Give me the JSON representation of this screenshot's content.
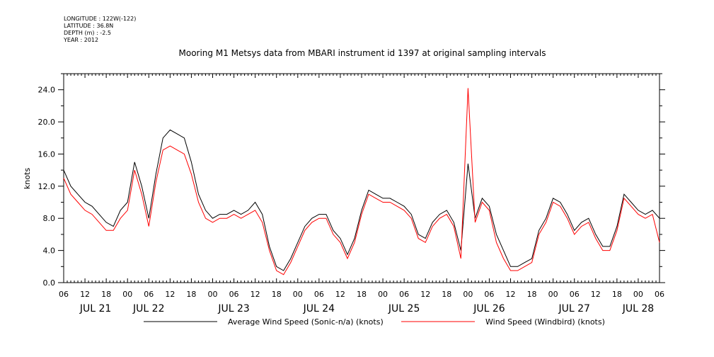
{
  "header": {
    "meta_lines": [
      "LONGITUDE : 122W(-122)",
      "LATITUDE : 36.8N",
      "DEPTH (m) : -2.5",
      "YEAR : 2012"
    ],
    "title": "Mooring M1 Metsys data from MBARI instrument id 1397 at original sampling intervals"
  },
  "chart_data": {
    "type": "line",
    "title": "Mooring M1 Metsys data from MBARI instrument id 1397 at original sampling intervals",
    "xlabel": "",
    "ylabel": "knots",
    "x_units": "hours since JUL 21 06:00 (2012)",
    "xlim": [
      0,
      168
    ],
    "ylim": [
      0,
      26
    ],
    "y_ticks": [
      0.0,
      4.0,
      8.0,
      12.0,
      16.0,
      20.0,
      24.0
    ],
    "y_tick_labels": [
      "0.0",
      "4.0",
      "8.0",
      "12.0",
      "16.0",
      "20.0",
      "24.0"
    ],
    "x_tick_labels": [
      "06",
      "12",
      "18",
      "00",
      "06",
      "12",
      "18",
      "00",
      "06",
      "12",
      "18",
      "00",
      "06",
      "12",
      "18",
      "00",
      "06",
      "12",
      "18",
      "00",
      "06",
      "12",
      "18",
      "00",
      "06",
      "12",
      "18",
      "00",
      "06"
    ],
    "day_labels": [
      "JUL 21",
      "JUL 22",
      "JUL 23",
      "JUL 24",
      "JUL 25",
      "JUL 26",
      "JUL 27",
      "JUL 28"
    ],
    "legend_position": "bottom",
    "grid": false,
    "series": [
      {
        "name": "Average Wind Speed (Sonic-n/a) (knots)",
        "color": "#000000",
        "x": [
          0,
          2,
          4,
          6,
          8,
          10,
          12,
          14,
          16,
          18,
          20,
          22,
          24,
          26,
          28,
          30,
          32,
          34,
          36,
          38,
          40,
          42,
          44,
          46,
          48,
          50,
          52,
          54,
          56,
          58,
          60,
          62,
          64,
          66,
          68,
          70,
          72,
          74,
          76,
          78,
          80,
          82,
          84,
          86,
          88,
          90,
          92,
          94,
          96,
          98,
          100,
          102,
          104,
          106,
          108,
          110,
          112,
          114,
          116,
          118,
          120,
          122,
          124,
          126,
          128,
          130,
          132,
          134,
          136,
          138,
          140,
          142,
          144,
          146,
          148,
          150,
          152,
          154,
          156,
          158,
          160,
          162,
          164,
          166,
          168
        ],
        "values": [
          14.0,
          12.0,
          11.0,
          10.0,
          9.5,
          8.5,
          7.5,
          7.0,
          9.0,
          10.0,
          15.0,
          12.0,
          8.0,
          13.5,
          18.0,
          19.0,
          18.5,
          18.0,
          15.0,
          11.0,
          9.0,
          8.0,
          8.5,
          8.5,
          9.0,
          8.5,
          9.0,
          10.0,
          8.5,
          4.5,
          2.0,
          1.5,
          3.0,
          5.0,
          7.0,
          8.0,
          8.5,
          8.5,
          6.5,
          5.5,
          3.5,
          5.5,
          9.0,
          11.5,
          11.0,
          10.5,
          10.5,
          10.0,
          9.5,
          8.5,
          6.0,
          5.5,
          7.5,
          8.5,
          9.0,
          7.5,
          4.0,
          14.8,
          8.0,
          10.5,
          9.5,
          6.0,
          4.0,
          2.0,
          2.0,
          2.5,
          3.0,
          6.5,
          8.0,
          10.5,
          10.0,
          8.5,
          6.5,
          7.5,
          8.0,
          6.0,
          4.5,
          4.5,
          7.0,
          11.0,
          10.0,
          9.0,
          8.5,
          9.0,
          8.0
        ]
      },
      {
        "name": "Wind Speed (Windbird) (knots)",
        "color": "#ff0000",
        "x": [
          0,
          2,
          4,
          6,
          8,
          10,
          12,
          14,
          16,
          18,
          20,
          22,
          24,
          26,
          28,
          30,
          32,
          34,
          36,
          38,
          40,
          42,
          44,
          46,
          48,
          50,
          52,
          54,
          56,
          58,
          60,
          62,
          64,
          66,
          68,
          70,
          72,
          74,
          76,
          78,
          80,
          82,
          84,
          86,
          88,
          90,
          92,
          94,
          96,
          98,
          100,
          102,
          104,
          106,
          108,
          110,
          112,
          114,
          116,
          118,
          120,
          122,
          124,
          126,
          128,
          130,
          132,
          134,
          136,
          138,
          140,
          142,
          144,
          146,
          148,
          150,
          152,
          154,
          156,
          158,
          160,
          162,
          164,
          166,
          168
        ],
        "values": [
          13.0,
          11.0,
          10.0,
          9.0,
          8.5,
          7.5,
          6.5,
          6.5,
          8.0,
          9.0,
          14.0,
          11.0,
          7.0,
          12.5,
          16.5,
          17.0,
          16.5,
          16.0,
          13.5,
          10.0,
          8.0,
          7.5,
          8.0,
          8.0,
          8.5,
          8.0,
          8.5,
          9.0,
          7.5,
          4.0,
          1.5,
          1.0,
          2.5,
          4.5,
          6.5,
          7.5,
          8.0,
          8.0,
          6.0,
          5.0,
          3.0,
          5.0,
          8.5,
          11.0,
          10.5,
          10.0,
          10.0,
          9.5,
          9.0,
          8.0,
          5.5,
          5.0,
          7.0,
          8.0,
          8.5,
          7.0,
          3.0,
          24.2,
          7.5,
          10.0,
          9.0,
          5.0,
          3.0,
          1.5,
          1.5,
          2.0,
          2.5,
          6.0,
          7.5,
          10.0,
          9.5,
          8.0,
          6.0,
          7.0,
          7.5,
          5.5,
          4.0,
          4.0,
          6.5,
          10.5,
          9.5,
          8.5,
          8.0,
          8.5,
          5.0
        ]
      }
    ]
  }
}
